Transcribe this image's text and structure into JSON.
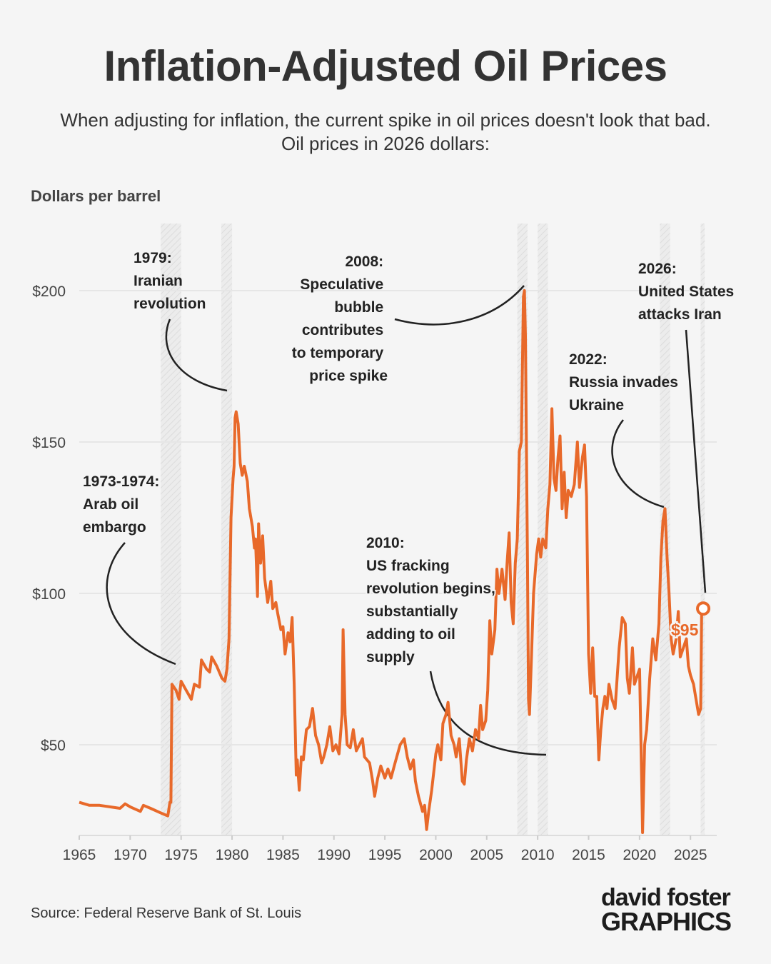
{
  "title": "Inflation-Adjusted Oil Prices",
  "subtitle_lines": [
    "When adjusting for inflation, the current spike in oil prices doesn't look that bad.",
    "Oil prices in 2026 dollars:"
  ],
  "source": "Source: Federal Reserve Bank of St. Louis",
  "logo": {
    "line1": "david foster",
    "line2": "GRAPHICS",
    "accent": "#3a8fd6"
  },
  "chart_data": {
    "type": "line",
    "ylabel": "Dollars per barrel",
    "xlim": [
      1965,
      2027.5
    ],
    "ylim": [
      20,
      222
    ],
    "grid": true,
    "line_color": "#e8692a",
    "x_ticks": [
      1965,
      1970,
      1975,
      1980,
      1985,
      1990,
      1995,
      2000,
      2005,
      2010,
      2015,
      2020,
      2025
    ],
    "y_ticks": [
      {
        "value": 50,
        "label": "$50"
      },
      {
        "value": 100,
        "label": "$100"
      },
      {
        "value": 150,
        "label": "$150"
      },
      {
        "value": 200,
        "label": "$200"
      }
    ],
    "shaded_periods": [
      [
        1973.0,
        1975.0
      ],
      [
        1978.95,
        1980.0
      ],
      [
        2008.0,
        2009.0
      ],
      [
        2010.0,
        2011.0
      ],
      [
        2022.0,
        2023.0
      ],
      [
        2026.0,
        2026.4
      ]
    ],
    "series": [
      {
        "x": [
          1965,
          1966,
          1967,
          1968,
          1969,
          1969.5,
          1970,
          1971,
          1971.3,
          1972,
          1973,
          1973.7,
          1973.9,
          1974.0,
          1974.1,
          1974.5,
          1974.8,
          1975,
          1975.5,
          1976,
          1976.3,
          1976.8,
          1977,
          1977.5,
          1977.8,
          1978,
          1978.5,
          1979,
          1979.3,
          1979.5,
          1979.7,
          1979.9,
          1980.1,
          1980.2,
          1980.3,
          1980.4,
          1980.6,
          1980.8,
          1981,
          1981.2,
          1981.5,
          1981.7,
          1982,
          1982.2,
          1982.3,
          1982.5,
          1982.6,
          1982.8,
          1983,
          1983.2,
          1983.5,
          1983.8,
          1984,
          1984.3,
          1984.5,
          1984.8,
          1985,
          1985.2,
          1985.5,
          1985.7,
          1985.9,
          1986.1,
          1986.3,
          1986.4,
          1986.6,
          1986.8,
          1987,
          1987.3,
          1987.6,
          1987.9,
          1988.2,
          1988.5,
          1988.8,
          1989,
          1989.3,
          1989.6,
          1989.9,
          1990.2,
          1990.5,
          1990.8,
          1990.9,
          1991.1,
          1991.3,
          1991.6,
          1991.9,
          1992.2,
          1992.5,
          1992.8,
          1993,
          1993.5,
          1993.8,
          1994,
          1994.3,
          1994.6,
          1995,
          1995.3,
          1995.6,
          1996,
          1996.5,
          1996.9,
          1997.2,
          1997.5,
          1997.8,
          1998,
          1998.3,
          1998.7,
          1998.9,
          1999.1,
          1999.3,
          1999.6,
          2000,
          2000.2,
          2000.5,
          2000.7,
          2001,
          2001.2,
          2001.5,
          2001.8,
          2002,
          2002.3,
          2002.6,
          2002.8,
          2003,
          2003.3,
          2003.6,
          2003.9,
          2004.2,
          2004.4,
          2004.6,
          2004.9,
          2005.1,
          2005.3,
          2005.5,
          2005.8,
          2006,
          2006.2,
          2006.5,
          2006.8,
          2007,
          2007.2,
          2007.4,
          2007.6,
          2007.8,
          2008,
          2008.2,
          2008.4,
          2008.6,
          2008.7,
          2008.8,
          2009.0,
          2009.1,
          2009.2,
          2009.4,
          2009.6,
          2009.9,
          2010.1,
          2010.3,
          2010.5,
          2010.8,
          2011,
          2011.2,
          2011.4,
          2011.6,
          2011.8,
          2012,
          2012.2,
          2012.4,
          2012.6,
          2012.8,
          2013,
          2013.3,
          2013.6,
          2013.9,
          2014.1,
          2014.4,
          2014.6,
          2014.8,
          2015.0,
          2015.2,
          2015.4,
          2015.6,
          2015.8,
          2016.0,
          2016.2,
          2016.4,
          2016.6,
          2016.8,
          2017,
          2017.3,
          2017.6,
          2018,
          2018.3,
          2018.6,
          2018.8,
          2019,
          2019.3,
          2019.5,
          2019.8,
          2020,
          2020.2,
          2020.3,
          2020.5,
          2020.7,
          2021,
          2021.3,
          2021.6,
          2021.9,
          2022.1,
          2022.3,
          2022.5,
          2022.7,
          2022.9,
          2023.1,
          2023.3,
          2023.6,
          2023.8,
          2024,
          2024.3,
          2024.6,
          2024.8,
          2025,
          2025.3,
          2025.5,
          2025.8,
          2026.0,
          2026.1,
          2026.25
        ],
        "y": [
          31,
          30,
          30,
          29.5,
          29,
          30.5,
          29.5,
          28,
          30,
          29,
          27.5,
          26.5,
          31,
          31,
          70,
          68,
          65,
          71,
          68,
          65,
          70,
          69,
          78,
          75,
          74,
          79,
          76,
          72,
          71,
          75,
          85,
          125,
          138,
          142,
          158,
          160,
          156,
          143,
          139,
          142,
          137,
          128,
          122,
          115,
          118,
          99,
          123,
          110,
          119,
          105,
          97,
          104,
          95,
          97,
          93,
          88,
          89,
          80,
          87,
          84,
          92,
          70,
          40,
          45,
          35,
          46,
          45,
          55,
          56,
          62,
          53,
          50,
          44,
          46,
          50,
          56,
          48,
          50,
          47,
          60,
          88,
          60,
          50,
          49,
          55,
          48,
          50,
          52,
          46,
          44,
          38,
          33,
          39,
          43,
          39,
          42,
          39,
          44,
          50,
          52,
          46,
          42,
          45,
          38,
          33,
          28,
          30,
          22,
          28,
          35,
          47,
          50,
          45,
          57,
          60,
          64,
          53,
          50,
          46,
          52,
          38,
          37,
          45,
          52,
          48,
          55,
          52,
          63,
          55,
          58,
          68,
          91,
          80,
          88,
          108,
          100,
          108,
          98,
          110,
          120,
          97,
          90,
          110,
          118,
          147,
          150,
          198,
          200,
          185,
          110,
          65,
          60,
          80,
          100,
          113,
          118,
          112,
          118,
          115,
          128,
          136,
          161,
          138,
          134,
          145,
          152,
          128,
          140,
          125,
          134,
          132,
          136,
          150,
          135,
          145,
          149,
          132,
          80,
          67,
          82,
          66,
          66,
          45,
          55,
          62,
          66,
          62,
          70,
          65,
          62,
          82,
          92,
          90,
          72,
          67,
          82,
          70,
          73,
          75,
          40,
          21,
          50,
          55,
          72,
          85,
          78,
          90,
          112,
          124,
          128,
          112,
          100,
          85,
          80,
          85,
          94,
          79,
          82,
          85,
          76,
          73,
          70,
          66,
          60,
          62,
          95,
          95
        ]
      }
    ],
    "endpoint": {
      "year": 2026.25,
      "value": 95,
      "label": "$95"
    },
    "annotations": [
      {
        "lines": [
          "1979:",
          "Iranian",
          "revolution"
        ]
      },
      {
        "lines": [
          "1973-1974:",
          "Arab oil",
          "embargo"
        ]
      },
      {
        "lines": [
          "2008:",
          "Speculative",
          "bubble",
          "contributes",
          "to temporary",
          "price spike"
        ]
      },
      {
        "lines": [
          "2010:",
          "US fracking",
          "revolution begins,",
          "substantially",
          "adding to oil",
          "supply"
        ]
      },
      {
        "lines": [
          "2022:",
          "Russia invades",
          "Ukraine"
        ]
      },
      {
        "lines": [
          "2026:",
          "United States",
          "attacks Iran"
        ]
      }
    ]
  }
}
